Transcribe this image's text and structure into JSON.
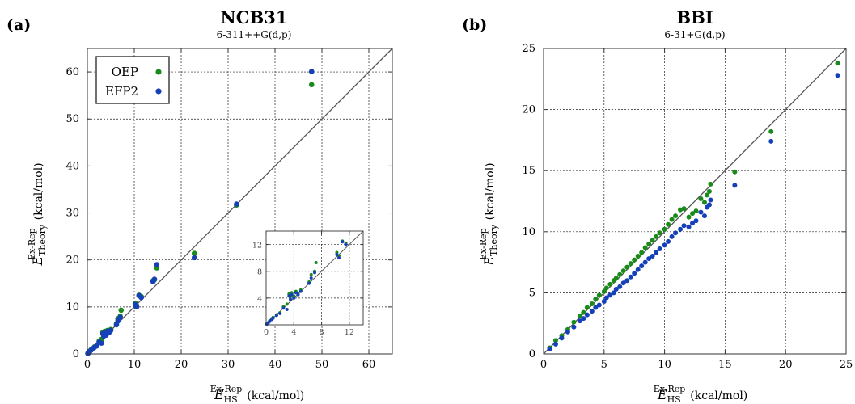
{
  "panel_a_label": "(a)",
  "panel_b_label": "(b)",
  "chart_data": [
    {
      "type": "scatter",
      "title": "NCB31",
      "subtitle": "6-311++G(d,p)",
      "xlabel_main": "E",
      "xlabel_sub": "HS",
      "xlabel_sup": "Ex-Rep",
      "xlabel_unit": "(kcal/mol)",
      "ylabel_main": "E",
      "ylabel_sub": "Theory",
      "ylabel_sup": "Ex-Rep",
      "ylabel_unit": "(kcal/mol)",
      "xlim": [
        0,
        65
      ],
      "ylim": [
        0,
        65
      ],
      "xticks": [
        "0",
        "10",
        "20",
        "30",
        "40",
        "50",
        "60"
      ],
      "yticks": [
        "0",
        "10",
        "20",
        "30",
        "40",
        "50",
        "60"
      ],
      "grid": true,
      "diagonal": true,
      "legend_position": "top-left",
      "series": [
        {
          "name": "OEP",
          "color": "#1a8a1a",
          "points": [
            [
              0.1,
              0.1
            ],
            [
              0.3,
              0.3
            ],
            [
              0.5,
              0.6
            ],
            [
              0.8,
              0.9
            ],
            [
              1.0,
              1.1
            ],
            [
              1.5,
              1.5
            ],
            [
              2.0,
              1.8
            ],
            [
              2.5,
              2.7
            ],
            [
              3.0,
              3.1
            ],
            [
              3.3,
              4.6
            ],
            [
              3.5,
              4.2
            ],
            [
              3.7,
              4.8
            ],
            [
              4.0,
              4.3
            ],
            [
              4.3,
              5.0
            ],
            [
              4.6,
              4.6
            ],
            [
              5.0,
              5.2
            ],
            [
              6.2,
              6.4
            ],
            [
              6.5,
              7.5
            ],
            [
              7.0,
              8.0
            ],
            [
              7.2,
              9.3
            ],
            [
              10.2,
              10.8
            ],
            [
              10.5,
              10.3
            ],
            [
              11.0,
              12.5
            ],
            [
              11.5,
              12.2
            ],
            [
              14.0,
              15.6
            ],
            [
              14.3,
              15.8
            ],
            [
              14.8,
              18.3
            ],
            [
              22.8,
              21.4
            ],
            [
              31.8,
              31.7
            ],
            [
              47.8,
              57.3
            ]
          ]
        },
        {
          "name": "EFP2",
          "color": "#1640b8",
          "points": [
            [
              0.1,
              0.1
            ],
            [
              0.3,
              0.3
            ],
            [
              0.5,
              0.5
            ],
            [
              0.8,
              0.8
            ],
            [
              1.0,
              1.0
            ],
            [
              1.5,
              1.4
            ],
            [
              2.0,
              1.7
            ],
            [
              2.5,
              2.5
            ],
            [
              3.0,
              2.3
            ],
            [
              3.3,
              4.3
            ],
            [
              3.5,
              3.8
            ],
            [
              3.7,
              4.5
            ],
            [
              4.0,
              4.0
            ],
            [
              4.3,
              4.8
            ],
            [
              4.6,
              4.5
            ],
            [
              5.0,
              5.0
            ],
            [
              6.2,
              6.2
            ],
            [
              6.5,
              7.0
            ],
            [
              7.0,
              7.8
            ],
            [
              10.2,
              10.5
            ],
            [
              10.5,
              10.0
            ],
            [
              11.0,
              12.4
            ],
            [
              11.5,
              12.0
            ],
            [
              14.0,
              15.4
            ],
            [
              14.3,
              15.9
            ],
            [
              14.8,
              19.0
            ],
            [
              22.8,
              20.5
            ],
            [
              31.8,
              31.9
            ],
            [
              47.8,
              60.1
            ]
          ]
        }
      ],
      "inset": {
        "xlim": [
          0,
          14
        ],
        "ylim": [
          0,
          14
        ],
        "xticks": [
          "0",
          "4",
          "8",
          "12"
        ],
        "yticks": [
          "4",
          "8",
          "12"
        ],
        "grid": true,
        "diagonal": true
      }
    },
    {
      "type": "scatter",
      "title": "BBI",
      "subtitle": "6-31+G(d,p)",
      "xlabel_main": "E",
      "xlabel_sub": "HS",
      "xlabel_sup": "Ex-Rep",
      "xlabel_unit": "(kcal/mol)",
      "ylabel_main": "E",
      "ylabel_sub": "Theory",
      "ylabel_sup": "Ex-Rep",
      "ylabel_unit": "(kcal/mol)",
      "xlim": [
        0,
        25
      ],
      "ylim": [
        0,
        25
      ],
      "xticks": [
        "0",
        "5",
        "10",
        "15",
        "20",
        "25"
      ],
      "yticks": [
        "0",
        "5",
        "10",
        "15",
        "20",
        "25"
      ],
      "grid": true,
      "diagonal": true,
      "series": [
        {
          "name": "OEP",
          "color": "#1a8a1a",
          "points": [
            [
              0.5,
              0.5
            ],
            [
              1.0,
              1.1
            ],
            [
              1.5,
              1.5
            ],
            [
              2.0,
              2.0
            ],
            [
              2.5,
              2.6
            ],
            [
              3.0,
              3.1
            ],
            [
              3.3,
              3.4
            ],
            [
              3.6,
              3.8
            ],
            [
              4.0,
              4.1
            ],
            [
              4.3,
              4.5
            ],
            [
              4.6,
              4.8
            ],
            [
              5.0,
              5.1
            ],
            [
              5.2,
              5.4
            ],
            [
              5.5,
              5.7
            ],
            [
              5.8,
              6.0
            ],
            [
              6.0,
              6.2
            ],
            [
              6.3,
              6.5
            ],
            [
              6.6,
              6.8
            ],
            [
              6.9,
              7.1
            ],
            [
              7.2,
              7.4
            ],
            [
              7.5,
              7.7
            ],
            [
              7.8,
              8.0
            ],
            [
              8.1,
              8.3
            ],
            [
              8.4,
              8.7
            ],
            [
              8.7,
              9.0
            ],
            [
              9.0,
              9.3
            ],
            [
              9.3,
              9.6
            ],
            [
              9.6,
              9.9
            ],
            [
              10.0,
              10.2
            ],
            [
              10.3,
              10.6
            ],
            [
              10.6,
              11.0
            ],
            [
              10.9,
              11.3
            ],
            [
              11.3,
              11.8
            ],
            [
              11.6,
              11.9
            ],
            [
              12.0,
              11.2
            ],
            [
              12.3,
              11.5
            ],
            [
              12.6,
              11.7
            ],
            [
              13.0,
              12.7
            ],
            [
              13.3,
              12.4
            ],
            [
              13.5,
              13.0
            ],
            [
              13.7,
              13.3
            ],
            [
              13.8,
              13.9
            ],
            [
              15.8,
              14.9
            ],
            [
              18.8,
              18.2
            ],
            [
              24.3,
              23.8
            ]
          ]
        },
        {
          "name": "EFP2",
          "color": "#1640b8",
          "points": [
            [
              0.5,
              0.4
            ],
            [
              1.0,
              0.8
            ],
            [
              1.5,
              1.3
            ],
            [
              2.0,
              1.8
            ],
            [
              2.5,
              2.2
            ],
            [
              3.0,
              2.7
            ],
            [
              3.3,
              2.9
            ],
            [
              3.6,
              3.2
            ],
            [
              4.0,
              3.5
            ],
            [
              4.3,
              3.8
            ],
            [
              4.6,
              4.0
            ],
            [
              5.0,
              4.3
            ],
            [
              5.2,
              4.6
            ],
            [
              5.5,
              4.8
            ],
            [
              5.8,
              5.0
            ],
            [
              6.0,
              5.3
            ],
            [
              6.3,
              5.5
            ],
            [
              6.6,
              5.8
            ],
            [
              6.9,
              6.0
            ],
            [
              7.2,
              6.3
            ],
            [
              7.5,
              6.6
            ],
            [
              7.8,
              6.9
            ],
            [
              8.1,
              7.2
            ],
            [
              8.4,
              7.5
            ],
            [
              8.7,
              7.8
            ],
            [
              9.0,
              8.0
            ],
            [
              9.3,
              8.3
            ],
            [
              9.6,
              8.6
            ],
            [
              10.0,
              8.9
            ],
            [
              10.3,
              9.2
            ],
            [
              10.6,
              9.6
            ],
            [
              10.9,
              9.9
            ],
            [
              11.3,
              10.2
            ],
            [
              11.6,
              10.5
            ],
            [
              12.0,
              10.4
            ],
            [
              12.3,
              10.7
            ],
            [
              12.6,
              10.9
            ],
            [
              13.0,
              11.6
            ],
            [
              13.3,
              11.3
            ],
            [
              13.5,
              12.0
            ],
            [
              13.7,
              12.2
            ],
            [
              13.8,
              12.6
            ],
            [
              15.8,
              13.8
            ],
            [
              18.8,
              17.4
            ],
            [
              24.3,
              22.8
            ]
          ]
        }
      ]
    }
  ]
}
